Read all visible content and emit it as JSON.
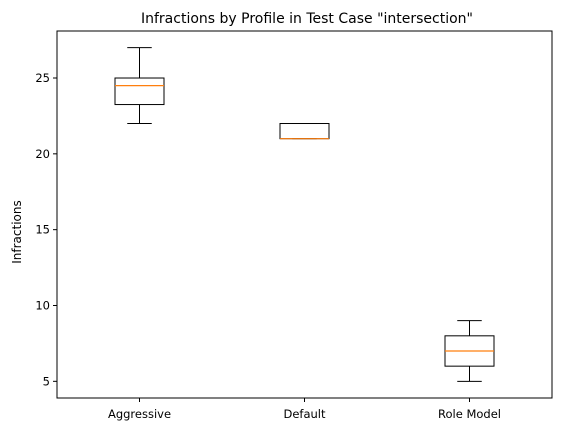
{
  "chart_data": {
    "type": "box",
    "title": "Infractions by Profile in Test Case \"intersection\"",
    "xlabel": "",
    "ylabel": "Infractions",
    "ylim": [
      3.9,
      28.1
    ],
    "yticks": [
      5,
      10,
      15,
      20,
      25
    ],
    "grid": false,
    "categories": [
      "Aggressive",
      "Default",
      "Role Model"
    ],
    "boxes": [
      {
        "category": "Aggressive",
        "whisker_low": 22,
        "q1": 23.25,
        "median": 24.5,
        "q3": 25,
        "whisker_high": 27
      },
      {
        "category": "Default",
        "whisker_low": 21,
        "q1": 21,
        "median": 21,
        "q3": 22,
        "whisker_high": 22
      },
      {
        "category": "Role Model",
        "whisker_low": 5,
        "q1": 6,
        "median": 7,
        "q3": 8,
        "whisker_high": 9
      }
    ],
    "colors": {
      "box": "#000000",
      "median": "#ff7f0e"
    }
  }
}
